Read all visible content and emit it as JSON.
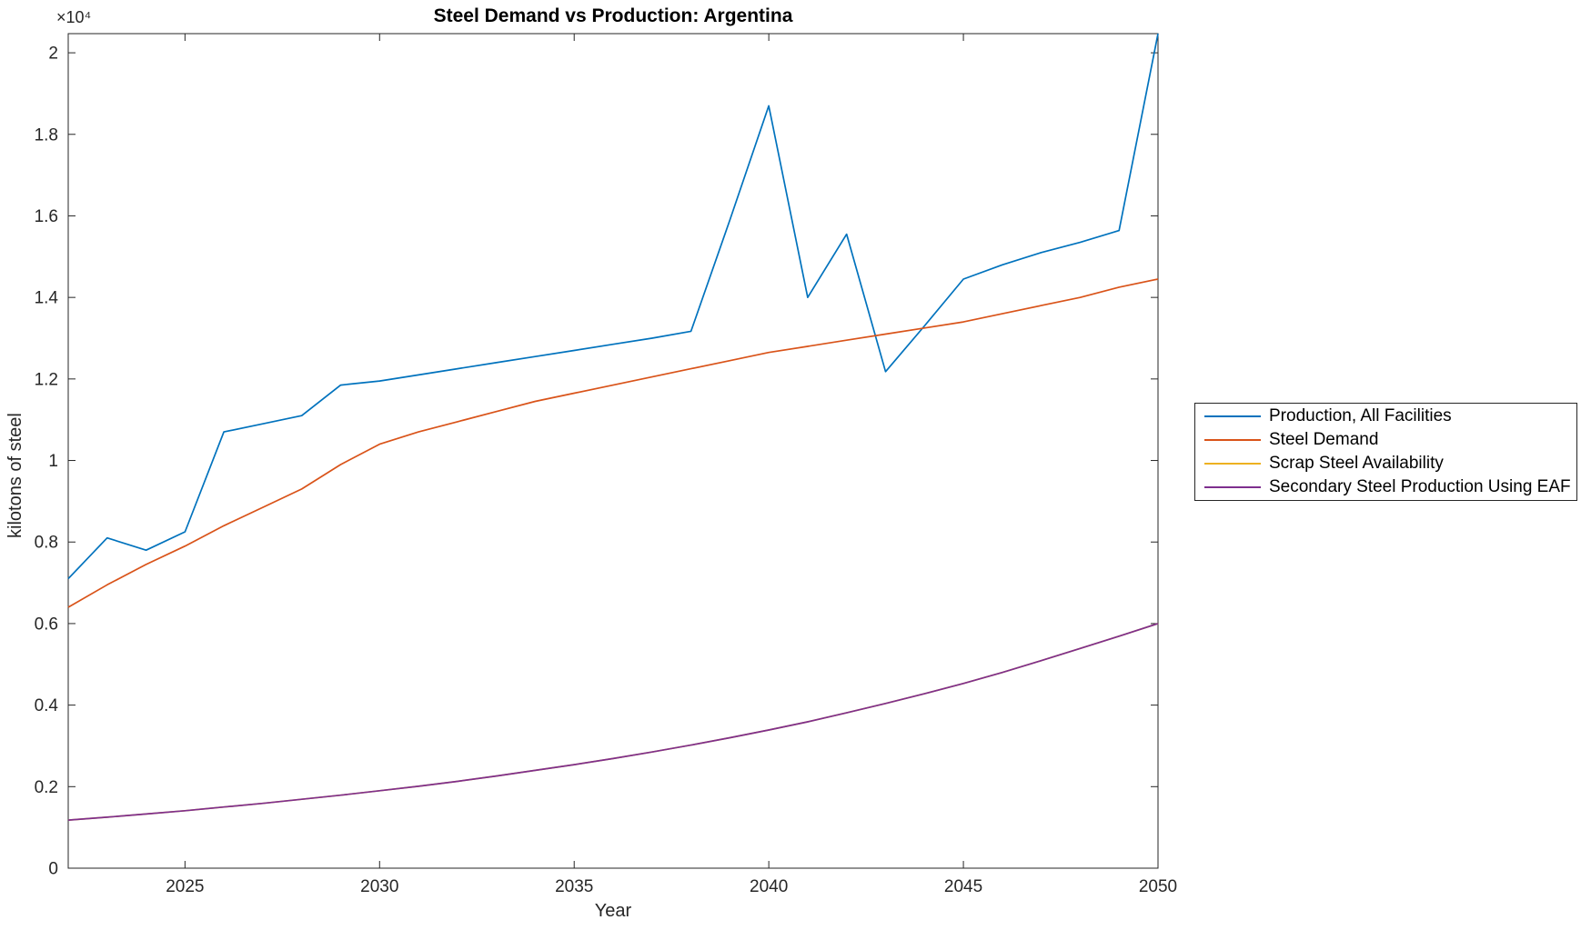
{
  "figure": {
    "title": "Steel Demand vs Production: Argentina",
    "xlabel": "Year",
    "ylabel": "kilotons of steel",
    "y_axis_multiplier": "×10⁴"
  },
  "chart_data": {
    "type": "line",
    "title": "Steel Demand vs Production: Argentina",
    "xlabel": "Year",
    "ylabel": "kilotons of steel",
    "y_axis_multiplier": "×10⁴",
    "xlim": [
      2022,
      2050
    ],
    "ylim": [
      0,
      20470
    ],
    "grid": false,
    "legend_position": "outside-right",
    "axis_color": "#262626",
    "xticks": [
      2025,
      2030,
      2035,
      2040,
      2045,
      2050
    ],
    "ytick_values": [
      0,
      2000,
      4000,
      6000,
      8000,
      10000,
      12000,
      14000,
      16000,
      18000,
      20000
    ],
    "ytick_labels": [
      "0",
      "0.2",
      "0.4",
      "0.6",
      "0.8",
      "1",
      "1.2",
      "1.4",
      "1.6",
      "1.8",
      "2"
    ],
    "x": [
      2022,
      2023,
      2024,
      2025,
      2026,
      2027,
      2028,
      2029,
      2030,
      2031,
      2032,
      2033,
      2034,
      2035,
      2036,
      2037,
      2038,
      2039,
      2040,
      2041,
      2042,
      2043,
      2044,
      2045,
      2046,
      2047,
      2048,
      2049,
      2050
    ],
    "series": [
      {
        "name": "Production, All Facilities",
        "color": "#0072BD",
        "values": [
          7100,
          8100,
          7800,
          8250,
          10700,
          10900,
          11100,
          11850,
          11950,
          12100,
          12250,
          12400,
          12550,
          12700,
          12850,
          13000,
          13170,
          15900,
          18700,
          14000,
          15550,
          12180,
          13300,
          14450,
          14800,
          15100,
          15350,
          15640,
          20470
        ]
      },
      {
        "name": "Steel Demand",
        "color": "#D95319",
        "values": [
          6400,
          6950,
          7450,
          7900,
          8400,
          8850,
          9300,
          9900,
          10400,
          10700,
          10950,
          11200,
          11450,
          11650,
          11850,
          12050,
          12250,
          12450,
          12650,
          12800,
          12950,
          13100,
          13250,
          13400,
          13600,
          13800,
          14000,
          14250,
          14450
        ]
      },
      {
        "name": "Scrap Steel Availability",
        "color": "#EDB120",
        "note": "coincides with Secondary Steel Production Using EAF and is hidden beneath it",
        "values": [
          1180,
          1250,
          1330,
          1410,
          1500,
          1590,
          1690,
          1790,
          1900,
          2010,
          2130,
          2260,
          2400,
          2540,
          2690,
          2850,
          3020,
          3200,
          3390,
          3590,
          3810,
          4040,
          4280,
          4530,
          4800,
          5090,
          5390,
          5690,
          6000
        ]
      },
      {
        "name": "Secondary Steel Production Using EAF",
        "color": "#7E2F8E",
        "values": [
          1180,
          1250,
          1330,
          1410,
          1500,
          1590,
          1690,
          1790,
          1900,
          2010,
          2130,
          2260,
          2400,
          2540,
          2690,
          2850,
          3020,
          3200,
          3390,
          3590,
          3810,
          4040,
          4280,
          4530,
          4800,
          5090,
          5390,
          5690,
          6000
        ]
      }
    ]
  }
}
